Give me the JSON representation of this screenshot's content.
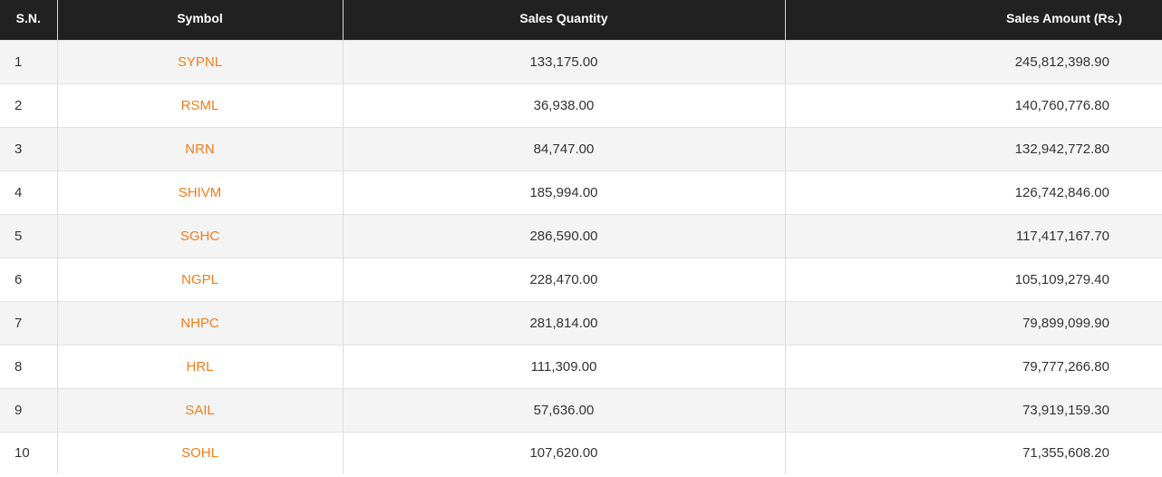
{
  "colors": {
    "header_bg": "#212121",
    "header_text": "#ffffff",
    "symbol_link": "#f27d1b",
    "row_odd_bg": "#f4f4f4",
    "row_even_bg": "#ffffff"
  },
  "table": {
    "headers": {
      "sn": "S.N.",
      "symbol": "Symbol",
      "sales_quantity": "Sales Quantity",
      "sales_amount": "Sales Amount (Rs.)"
    },
    "rows": [
      {
        "sn": "1",
        "symbol": "SYPNL",
        "quantity": "133,175.00",
        "amount": "245,812,398.90"
      },
      {
        "sn": "2",
        "symbol": "RSML",
        "quantity": "36,938.00",
        "amount": "140,760,776.80"
      },
      {
        "sn": "3",
        "symbol": "NRN",
        "quantity": "84,747.00",
        "amount": "132,942,772.80"
      },
      {
        "sn": "4",
        "symbol": "SHIVM",
        "quantity": "185,994.00",
        "amount": "126,742,846.00"
      },
      {
        "sn": "5",
        "symbol": "SGHC",
        "quantity": "286,590.00",
        "amount": "117,417,167.70"
      },
      {
        "sn": "6",
        "symbol": "NGPL",
        "quantity": "228,470.00",
        "amount": "105,109,279.40"
      },
      {
        "sn": "7",
        "symbol": "NHPC",
        "quantity": "281,814.00",
        "amount": "79,899,099.90"
      },
      {
        "sn": "8",
        "symbol": "HRL",
        "quantity": "111,309.00",
        "amount": "79,777,266.80"
      },
      {
        "sn": "9",
        "symbol": "SAIL",
        "quantity": "57,636.00",
        "amount": "73,919,159.30"
      },
      {
        "sn": "10",
        "symbol": "SOHL",
        "quantity": "107,620.00",
        "amount": "71,355,608.20"
      }
    ]
  }
}
